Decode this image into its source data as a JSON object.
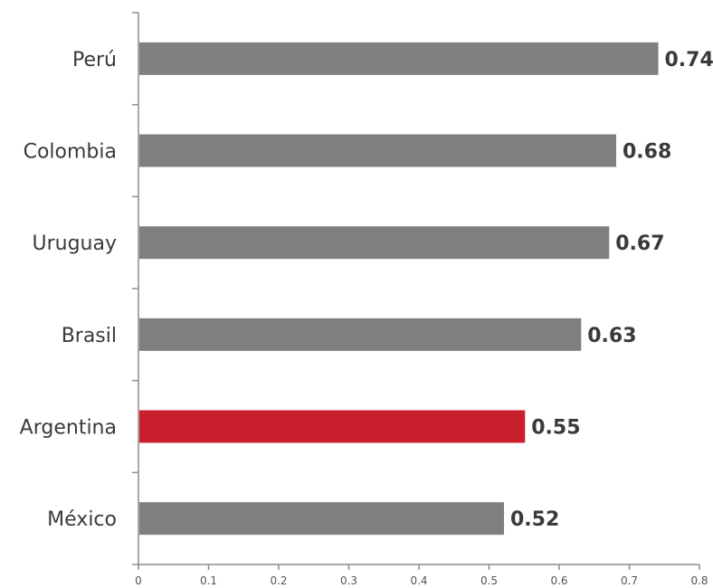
{
  "chart_data": {
    "type": "bar",
    "orientation": "horizontal",
    "categories": [
      "Perú",
      "Colombia",
      "Uruguay",
      "Brasil",
      "Argentina",
      "México"
    ],
    "values": [
      0.74,
      0.68,
      0.67,
      0.63,
      0.55,
      0.52
    ],
    "value_labels": [
      "0.74",
      "0.68",
      "0.67",
      "0.63",
      "0.55",
      "0.52"
    ],
    "xlim": [
      0,
      0.8
    ],
    "x_ticks": [
      0,
      0.1,
      0.2,
      0.3,
      0.4,
      0.5,
      0.6,
      0.7,
      0.8
    ],
    "x_tick_labels": [
      "0",
      "0.1",
      "0.2",
      "0.3",
      "0.4",
      "0.5",
      "0.6",
      "0.7",
      "0.8"
    ],
    "title": "",
    "xlabel": "",
    "ylabel": "",
    "grid": false,
    "colors": {
      "default": "#7f7f7f",
      "highlight": "#c8202c",
      "highlight_category": "Argentina"
    }
  }
}
